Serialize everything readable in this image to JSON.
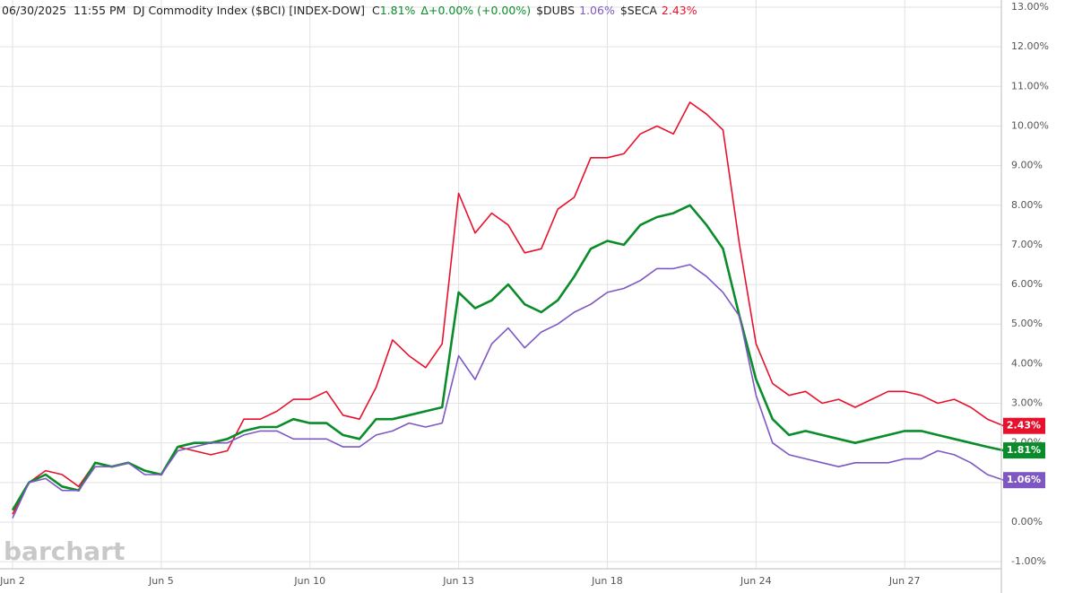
{
  "chart_data": {
    "type": "line",
    "header": {
      "prefix": "06/30/2025  11:55 PM  DJ Commodity Index ($BCI) [INDEX-DOW]  C",
      "close": "1.81%",
      "delta": "Δ",
      "change": "+0.00% (+0.00%)",
      "sym2": "$DUBS",
      "val2": "1.06%",
      "sym3": "$SECA",
      "val3": "2.43%"
    },
    "watermark": "barchart",
    "categories": [
      "Jun 2",
      null,
      null,
      null,
      null,
      null,
      null,
      null,
      null,
      "Jun 5",
      null,
      null,
      null,
      null,
      null,
      null,
      null,
      null,
      "Jun 10",
      null,
      null,
      null,
      null,
      null,
      null,
      null,
      null,
      "Jun 13",
      null,
      null,
      null,
      null,
      null,
      null,
      null,
      null,
      "Jun 18",
      null,
      null,
      null,
      null,
      null,
      null,
      null,
      null,
      "Jun 24",
      null,
      null,
      null,
      null,
      null,
      null,
      null,
      null,
      "Jun 27",
      null,
      null,
      null,
      null,
      null,
      null
    ],
    "series": [
      {
        "name": "$SECA",
        "color": "#e8112d",
        "values": [
          0.2,
          1.0,
          1.3,
          1.2,
          0.9,
          1.5,
          1.4,
          1.5,
          1.3,
          1.2,
          1.9,
          1.8,
          1.7,
          1.8,
          2.6,
          2.6,
          2.8,
          3.1,
          3.1,
          3.3,
          2.7,
          2.6,
          3.4,
          4.6,
          4.2,
          3.9,
          4.5,
          8.3,
          7.3,
          7.8,
          7.5,
          6.8,
          6.9,
          7.9,
          8.2,
          9.2,
          9.2,
          9.3,
          9.8,
          10.0,
          9.8,
          10.6,
          10.3,
          9.9,
          7.0,
          4.5,
          3.5,
          3.2,
          3.3,
          3.0,
          3.1,
          2.9,
          3.1,
          3.3,
          3.3,
          3.2,
          3.0,
          3.1,
          2.9,
          2.6,
          2.43
        ],
        "value_labels": [
          null,
          null,
          null,
          null,
          null,
          null,
          null,
          null,
          null,
          null,
          null,
          null,
          null,
          null,
          null,
          null,
          null,
          null,
          null,
          null,
          null,
          null,
          null,
          null,
          null,
          null,
          null,
          null,
          null,
          null,
          null,
          null,
          null,
          null,
          null,
          null,
          null,
          null,
          null,
          null,
          null,
          null,
          null,
          null,
          null,
          null,
          null,
          null,
          null,
          null,
          null,
          null,
          null,
          null,
          null,
          null,
          null,
          null,
          null,
          null,
          "2.43%"
        ]
      },
      {
        "name": "$BCI",
        "color": "#0a8c2a",
        "values": [
          0.3,
          1.0,
          1.2,
          0.9,
          0.8,
          1.5,
          1.4,
          1.5,
          1.3,
          1.2,
          1.9,
          2.0,
          2.0,
          2.1,
          2.3,
          2.4,
          2.4,
          2.6,
          2.5,
          2.5,
          2.2,
          2.1,
          2.6,
          2.6,
          2.7,
          2.8,
          2.9,
          5.8,
          5.4,
          5.6,
          6.0,
          5.5,
          5.3,
          5.6,
          6.2,
          6.9,
          7.1,
          7.0,
          7.5,
          7.7,
          7.8,
          8.0,
          7.5,
          6.9,
          5.2,
          3.6,
          2.6,
          2.2,
          2.3,
          2.2,
          2.1,
          2.0,
          2.1,
          2.2,
          2.3,
          2.3,
          2.2,
          2.1,
          2.0,
          1.9,
          1.81
        ],
        "value_labels": [
          null,
          null,
          null,
          null,
          null,
          null,
          null,
          null,
          null,
          null,
          null,
          null,
          null,
          null,
          null,
          null,
          null,
          null,
          null,
          null,
          null,
          null,
          null,
          null,
          null,
          null,
          null,
          null,
          null,
          null,
          null,
          null,
          null,
          null,
          null,
          null,
          null,
          null,
          null,
          null,
          null,
          null,
          null,
          null,
          null,
          null,
          null,
          null,
          null,
          null,
          null,
          null,
          null,
          null,
          null,
          null,
          null,
          null,
          null,
          null,
          "1.81%"
        ]
      },
      {
        "name": "$DUBS",
        "color": "#7e57c2",
        "values": [
          0.1,
          1.0,
          1.1,
          0.8,
          0.8,
          1.4,
          1.4,
          1.5,
          1.2,
          1.2,
          1.8,
          1.9,
          2.0,
          2.0,
          2.2,
          2.3,
          2.3,
          2.1,
          2.1,
          2.1,
          1.9,
          1.9,
          2.2,
          2.3,
          2.5,
          2.4,
          2.5,
          4.2,
          3.6,
          4.5,
          4.9,
          4.4,
          4.8,
          5.0,
          5.3,
          5.5,
          5.8,
          5.9,
          6.1,
          6.4,
          6.4,
          6.5,
          6.2,
          5.8,
          5.2,
          3.2,
          2.0,
          1.7,
          1.6,
          1.5,
          1.4,
          1.5,
          1.5,
          1.5,
          1.6,
          1.6,
          1.8,
          1.7,
          1.5,
          1.2,
          1.06
        ],
        "value_labels": [
          null,
          null,
          null,
          null,
          null,
          null,
          null,
          null,
          null,
          null,
          null,
          null,
          null,
          null,
          null,
          null,
          null,
          null,
          null,
          null,
          null,
          null,
          null,
          null,
          null,
          null,
          null,
          null,
          null,
          null,
          null,
          null,
          null,
          null,
          null,
          null,
          null,
          null,
          null,
          null,
          null,
          null,
          null,
          null,
          null,
          null,
          null,
          null,
          null,
          null,
          null,
          null,
          null,
          null,
          null,
          null,
          null,
          null,
          null,
          null,
          "1.06%"
        ]
      }
    ],
    "ylim": [
      -1.2,
      13.2
    ],
    "yticks": [
      {
        "value": -1,
        "label": "-1.00%"
      },
      {
        "value": 0,
        "label": "0.00%"
      },
      {
        "value": 1,
        "label": "1.00%"
      },
      {
        "value": 2,
        "label": "2.00%"
      },
      {
        "value": 3,
        "label": "3.00%"
      },
      {
        "value": 4,
        "label": "4.00%"
      },
      {
        "value": 5,
        "label": "5.00%"
      },
      {
        "value": 6,
        "label": "6.00%"
      },
      {
        "value": 7,
        "label": "7.00%"
      },
      {
        "value": 8,
        "label": "8.00%"
      },
      {
        "value": 9,
        "label": "9.00%"
      },
      {
        "value": 10,
        "label": "10.00%"
      },
      {
        "value": 11,
        "label": "11.00%"
      },
      {
        "value": 12,
        "label": "12.00%"
      },
      {
        "value": 13,
        "label": "13.00%"
      }
    ],
    "grid": true
  }
}
